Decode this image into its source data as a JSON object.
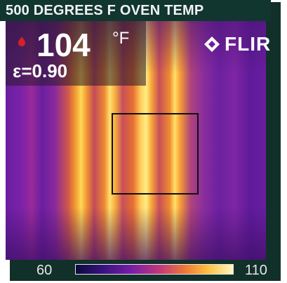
{
  "title": "500 DEGREES F OVEN TEMP",
  "readout": {
    "temperature": "104",
    "unit": "°F",
    "emissivity": "ε=0.90"
  },
  "brand": {
    "name": "FLIR"
  },
  "scale": {
    "min": "60",
    "max": "110"
  },
  "colors": {
    "frame": "#12302a",
    "banner": "#10362f",
    "text": "#ffffff",
    "measure_box": "#111111"
  },
  "icons": [
    "flame-icon",
    "flir-logo-icon"
  ]
}
